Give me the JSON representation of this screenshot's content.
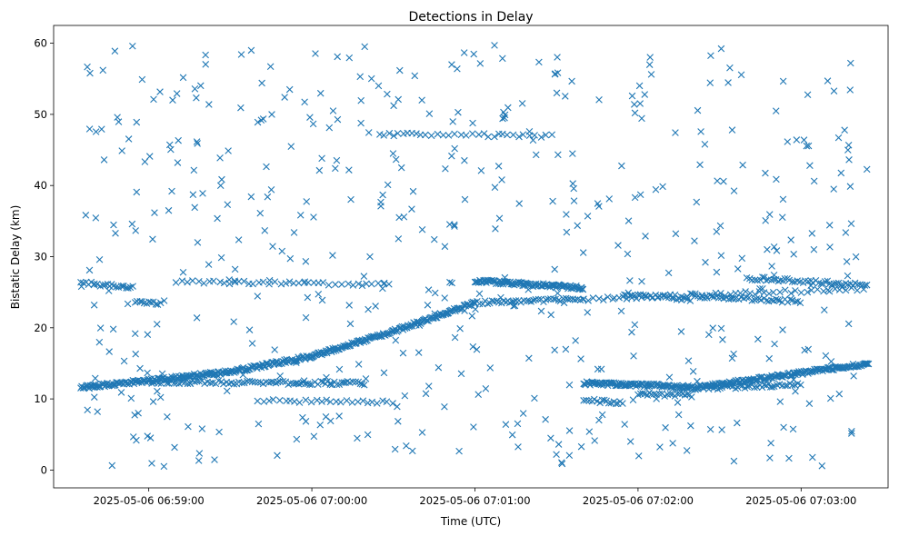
{
  "chart_data": {
    "type": "scatter",
    "title": "Detections in Delay",
    "xlabel": "Time (UTC)",
    "ylabel": "Bistatic Delay (km)",
    "marker": "x",
    "color": "#1f77b4",
    "x_is_time": true,
    "xlim": [
      "2025-05-06 06:58:25",
      "2025-05-06 07:03:32"
    ],
    "ylim": [
      -2.5,
      62.5
    ],
    "x_ticks": [
      "2025-05-06 06:59:00",
      "2025-05-06 07:00:00",
      "2025-05-06 07:01:00",
      "2025-05-06 07:02:00",
      "2025-05-06 07:03:00"
    ],
    "y_ticks": [
      0,
      10,
      20,
      30,
      40,
      50,
      60
    ],
    "grid": false,
    "tracks": [
      {
        "from": [
          "2025-05-06 06:58:35",
          11.6
        ],
        "to": [
          "2025-05-06 06:59:30",
          13.8
        ],
        "density": "dense"
      },
      {
        "from": [
          "2025-05-06 06:59:30",
          13.8
        ],
        "to": [
          "2025-05-06 07:00:00",
          16.0
        ],
        "density": "dense"
      },
      {
        "from": [
          "2025-05-06 07:00:00",
          16.0
        ],
        "to": [
          "2025-05-06 07:00:30",
          19.5
        ],
        "density": "dense"
      },
      {
        "from": [
          "2025-05-06 07:00:30",
          19.5
        ],
        "to": [
          "2025-05-06 07:01:00",
          23.5
        ],
        "density": "dense"
      },
      {
        "from": [
          "2025-05-06 07:01:00",
          23.5
        ],
        "to": [
          "2025-05-06 07:01:40",
          24.0
        ],
        "density": "medium"
      },
      {
        "from": [
          "2025-05-06 07:01:40",
          24.0
        ],
        "to": [
          "2025-05-06 07:03:25",
          25.5
        ],
        "density": "sparse"
      },
      {
        "from": [
          "2025-05-06 06:58:35",
          26.3
        ],
        "to": [
          "2025-05-06 06:58:55",
          25.7
        ],
        "density": "medium"
      },
      {
        "from": [
          "2025-05-06 06:58:55",
          23.8
        ],
        "to": [
          "2025-05-06 06:59:05",
          23.4
        ],
        "density": "medium"
      },
      {
        "from": [
          "2025-05-06 06:59:10",
          26.5
        ],
        "to": [
          "2025-05-06 07:00:30",
          26.0
        ],
        "density": "sparse"
      },
      {
        "from": [
          "2025-05-06 06:59:00",
          12.4
        ],
        "to": [
          "2025-05-06 07:00:20",
          12.2
        ],
        "density": "medium"
      },
      {
        "from": [
          "2025-05-06 06:59:40",
          9.8
        ],
        "to": [
          "2025-05-06 07:00:30",
          9.5
        ],
        "density": "sparse"
      },
      {
        "from": [
          "2025-05-06 07:00:25",
          47.2
        ],
        "to": [
          "2025-05-06 07:01:30",
          47.0
        ],
        "density": "sparse"
      },
      {
        "from": [
          "2025-05-06 07:01:00",
          26.6
        ],
        "to": [
          "2025-05-06 07:01:40",
          25.6
        ],
        "density": "dense"
      },
      {
        "from": [
          "2025-05-06 07:01:40",
          12.2
        ],
        "to": [
          "2025-05-06 07:02:20",
          11.7
        ],
        "density": "dense"
      },
      {
        "from": [
          "2025-05-06 07:01:40",
          9.8
        ],
        "to": [
          "2025-05-06 07:01:55",
          9.5
        ],
        "density": "medium"
      },
      {
        "from": [
          "2025-05-06 07:02:00",
          10.8
        ],
        "to": [
          "2025-05-06 07:02:20",
          10.4
        ],
        "density": "medium"
      },
      {
        "from": [
          "2025-05-06 07:02:20",
          11.5
        ],
        "to": [
          "2025-05-06 07:03:25",
          15.0
        ],
        "density": "dense"
      },
      {
        "from": [
          "2025-05-06 07:02:20",
          11.5
        ],
        "to": [
          "2025-05-06 07:03:00",
          12.0
        ],
        "density": "medium"
      },
      {
        "from": [
          "2025-05-06 07:01:55",
          24.8
        ],
        "to": [
          "2025-05-06 07:02:20",
          24.0
        ],
        "density": "medium"
      },
      {
        "from": [
          "2025-05-06 07:02:20",
          24.5
        ],
        "to": [
          "2025-05-06 07:03:00",
          23.7
        ],
        "density": "medium"
      },
      {
        "from": [
          "2025-05-06 07:02:40",
          27.0
        ],
        "to": [
          "2025-05-06 07:03:25",
          26.0
        ],
        "density": "medium"
      }
    ],
    "clutter": {
      "count": 520,
      "x_range": [
        "2025-05-06 06:58:35",
        "2025-05-06 07:03:25"
      ],
      "y_range": [
        0.5,
        60
      ]
    }
  }
}
